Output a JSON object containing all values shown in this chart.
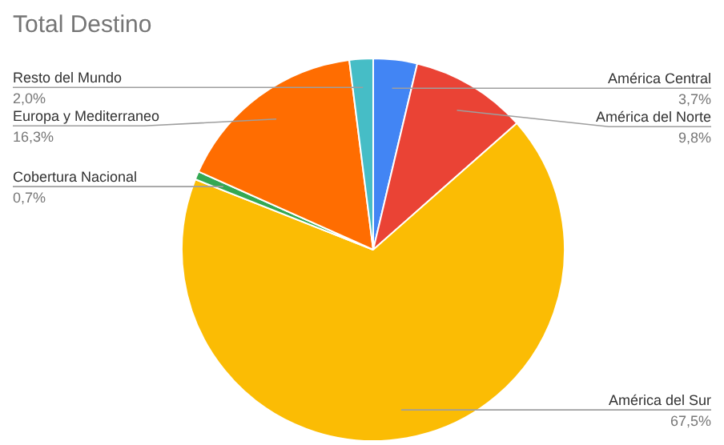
{
  "chart_data": {
    "type": "pie",
    "title": "Total Destino",
    "categories": [
      "América Central",
      "América del Norte",
      "América del Sur",
      "Cobertura Nacional",
      "Europa y Mediterraneo",
      "Resto del Mundo"
    ],
    "values": [
      3.7,
      9.8,
      67.5,
      0.7,
      16.3,
      2.0
    ],
    "value_labels": [
      "3,7%",
      "9,8%",
      "67,5%",
      "0,7%",
      "16,3%",
      "2,0%"
    ],
    "colors": [
      "#4285f4",
      "#ea4335",
      "#fbbc04",
      "#34a853",
      "#ff6d01",
      "#46bdc6"
    ],
    "legend": false
  }
}
